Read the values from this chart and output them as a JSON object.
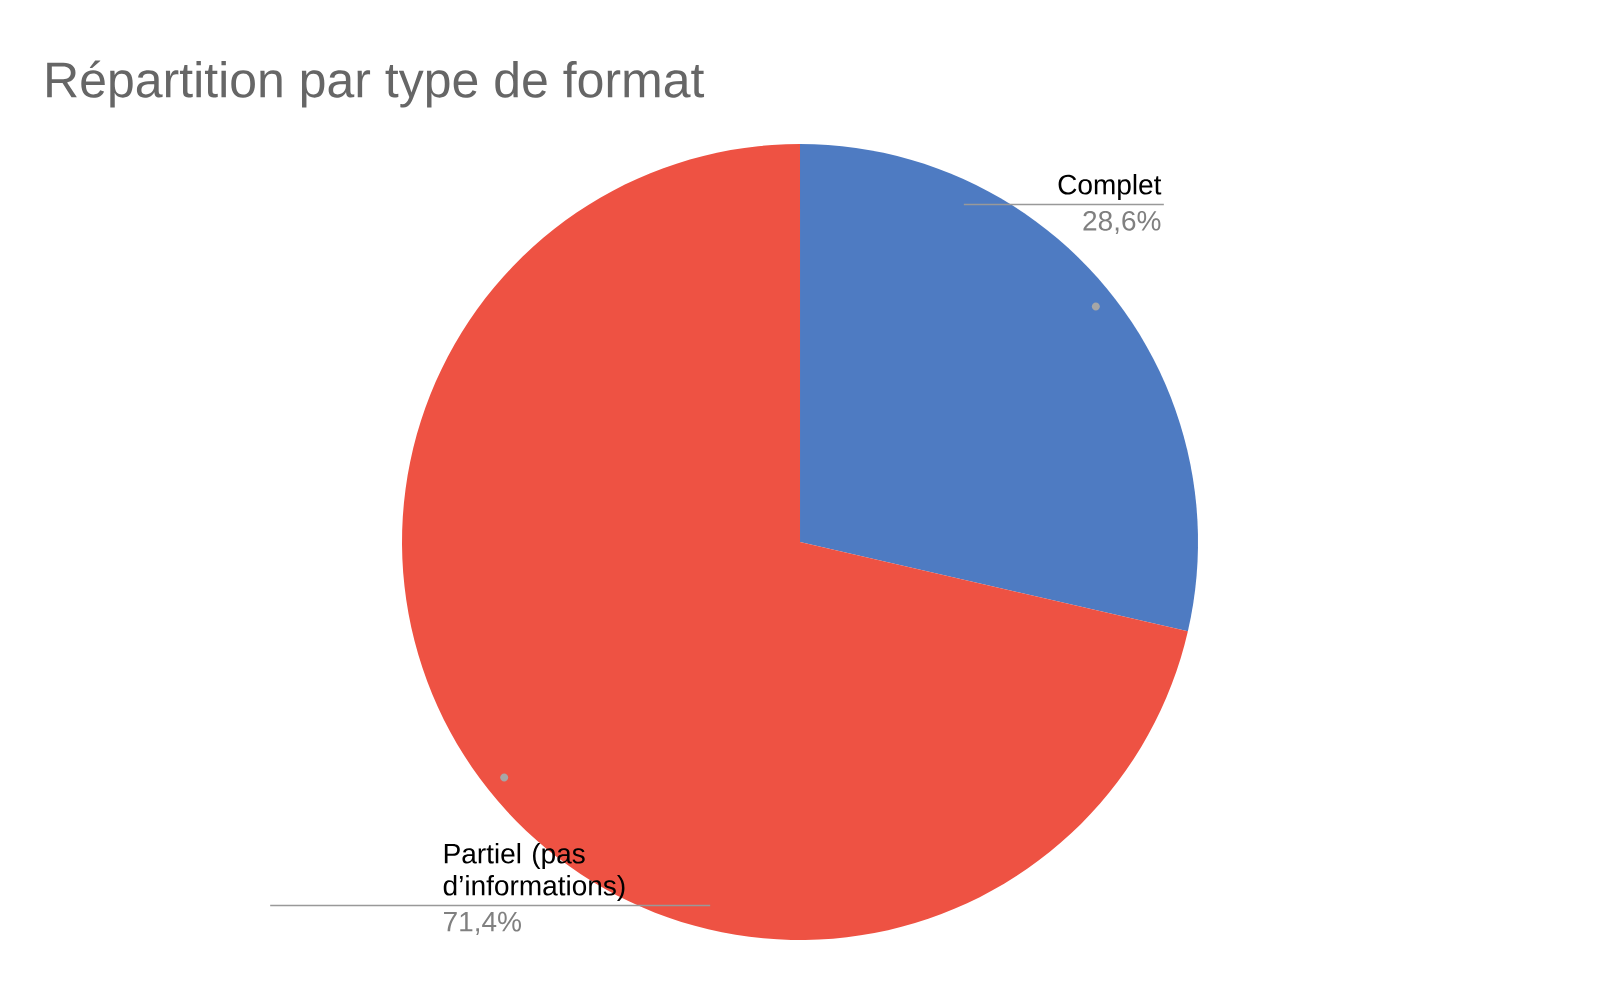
{
  "chart_data": {
    "type": "pie",
    "title": "Répartition par type de format",
    "categories": [
      "Complet",
      "Partiel (pas d’informations)"
    ],
    "values": [
      28.6,
      71.4
    ],
    "colors": [
      "#4e7bc2",
      "#ee5243"
    ],
    "value_labels": [
      "28,6%",
      "71,4%"
    ],
    "legend": false
  }
}
